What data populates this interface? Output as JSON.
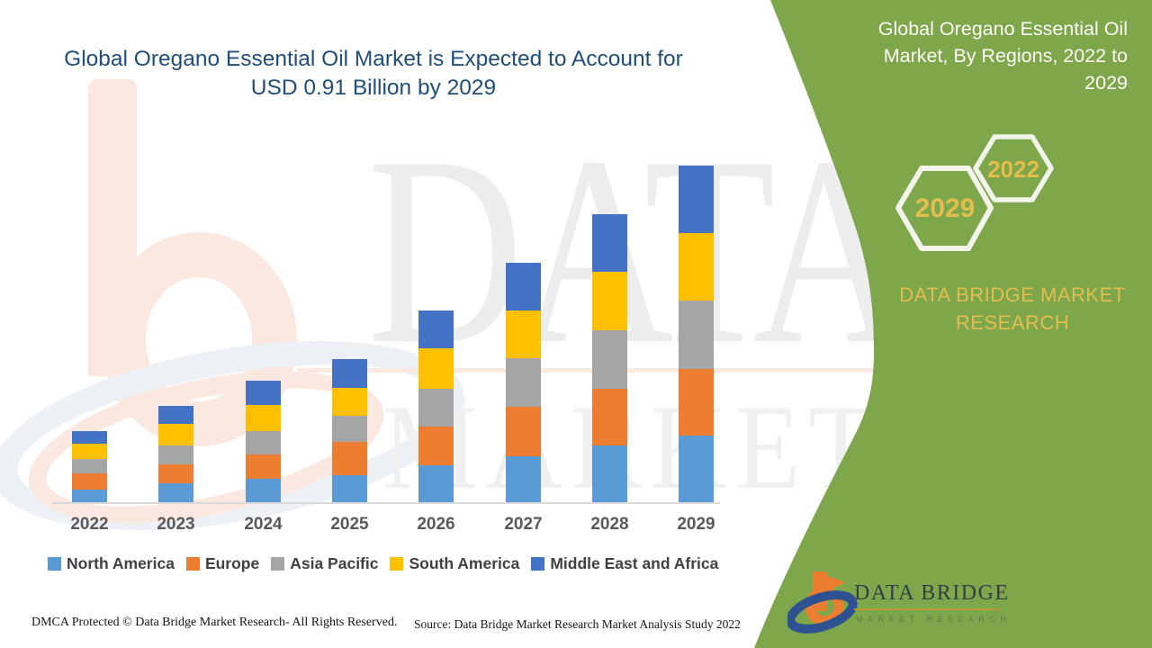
{
  "theme": {
    "green": "#78A343",
    "gold": "#E3BE4E",
    "titleblue": "#1F4E79",
    "peach": "#FBE9E1",
    "bluegray": "#EDF1F6",
    "wmgray": "#EDEDED",
    "wmgray2": "#F0F0F0"
  },
  "header": {
    "title_line1": "Global Oregano Essential Oil Market is Expected to Account for",
    "title_line2": "USD 0.91 Billion by 2029"
  },
  "watermark": {
    "line1": "DATA BRIDGE",
    "line2": "MARKET RESEARCH"
  },
  "chart_data": {
    "type": "bar",
    "subtype": "stacked-vertical",
    "title": "Global Oregano Essential Oil Market is Expected to Account for USD 0.91 Billion by 2029",
    "categories": [
      "2022",
      "2023",
      "2024",
      "2025",
      "2026",
      "2027",
      "2028",
      "2029"
    ],
    "series": [
      {
        "name": "North America",
        "color": "#5B9BD5",
        "values": [
          35,
          51,
          63,
          74,
          100,
          124,
          152,
          180
        ]
      },
      {
        "name": "Europe",
        "color": "#ED7D31",
        "values": [
          44,
          50,
          65,
          89,
          105,
          133,
          154,
          180
        ]
      },
      {
        "name": "Asia Pacific",
        "color": "#A5A5A5",
        "values": [
          37,
          53,
          64,
          70,
          101,
          132,
          158,
          184
        ]
      },
      {
        "name": "South America",
        "color": "#FFC000",
        "values": [
          41,
          57,
          69,
          75,
          109,
          129,
          158,
          182
        ]
      },
      {
        "name": "Middle East and Africa",
        "color": "#4472C4",
        "values": [
          36,
          49,
          66,
          79,
          103,
          128,
          154,
          182
        ]
      }
    ],
    "value_unit": "USD million (estimated from bar heights; 2029 total = USD 0.91 billion)",
    "estimated_totals": [
      193,
      260,
      327,
      387,
      518,
      646,
      776,
      908
    ],
    "xlabel": "",
    "ylabel": "",
    "y_axis_visible": false,
    "gridlines": false,
    "legend_position": "bottom"
  },
  "right_panel": {
    "title": "Global Oregano Essential Oil Market, By Regions, 2022 to 2029",
    "hex_front_year": "2022",
    "hex_back_year": "2029",
    "brand": "DATA BRIDGE MARKET RESEARCH",
    "logo_name": "DATA BRIDGE",
    "logo_sub": "MARKET RESEARCH"
  },
  "footer": {
    "dmca": "DMCA Protected © Data Bridge Market Research- All Rights Reserved.",
    "source": "Source: Data Bridge Market Research Market Analysis Study 2022"
  }
}
